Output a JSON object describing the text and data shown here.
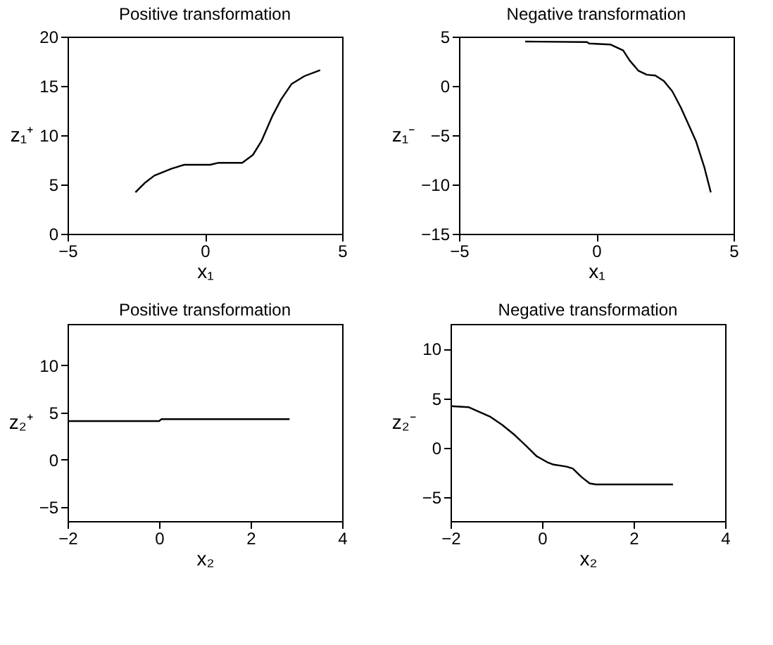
{
  "chart_data": [
    {
      "type": "line",
      "title": "Positive transformation",
      "xlabel": "x₁",
      "ylabel": "z₁⁺",
      "xlim": [
        -5,
        5
      ],
      "ylim": [
        0,
        20
      ],
      "xticks": [
        -5,
        0,
        5
      ],
      "yticks": [
        0,
        5,
        10,
        15,
        20
      ],
      "line_style": "solid",
      "series": [
        {
          "color": "#000000",
          "x": [
            -2.53,
            -2.17,
            -1.84,
            -1.22,
            -0.75,
            0.19,
            0.5,
            1.36,
            1.75,
            2.06,
            2.45,
            2.77,
            3.16,
            3.63,
            4.2
          ],
          "values": [
            4.2,
            5.2,
            5.9,
            6.6,
            7.0,
            7.0,
            7.2,
            7.2,
            8.0,
            9.4,
            11.9,
            13.6,
            15.2,
            16.0,
            16.6
          ]
        }
      ]
    },
    {
      "type": "line",
      "title": "Negative transformation",
      "xlabel": "x₁",
      "ylabel": "z₁⁻",
      "xlim": [
        -5,
        5
      ],
      "ylim": [
        -15,
        5
      ],
      "xticks": [
        -5,
        0,
        5
      ],
      "yticks": [
        -15,
        -10,
        -5,
        0,
        5
      ],
      "line_style": "solid",
      "series": [
        {
          "color": "#000000",
          "x": [
            -2.59,
            -0.34,
            -0.26,
            0.51,
            0.98,
            1.21,
            1.53,
            1.84,
            2.15,
            2.46,
            2.77,
            3.08,
            3.39,
            3.63,
            3.94,
            4.17
          ],
          "values": [
            4.5,
            4.45,
            4.3,
            4.2,
            3.6,
            2.6,
            1.55,
            1.13,
            1.05,
            0.5,
            -0.55,
            -2.2,
            -4.1,
            -5.6,
            -8.3,
            -10.8
          ]
        }
      ]
    },
    {
      "type": "line",
      "title": "Positive transformation",
      "xlabel": "x₂",
      "ylabel": "z₂⁺",
      "xlim": [
        -2,
        4
      ],
      "ylim": [
        -6.5,
        14.4
      ],
      "xticks": [
        -2,
        0,
        2,
        4
      ],
      "yticks": [
        -5,
        0,
        5,
        10
      ],
      "line_style": "solid",
      "series": [
        {
          "color": "#000000",
          "x": [
            -2,
            0,
            0.05,
            2.85
          ],
          "values": [
            4.1,
            4.1,
            4.3,
            4.3
          ]
        }
      ]
    },
    {
      "type": "line",
      "title": "Negative transformation",
      "xlabel": "x₂",
      "ylabel": "z₂⁻",
      "xlim": [
        -2,
        4
      ],
      "ylim": [
        -7.4,
        12.5
      ],
      "xticks": [
        -2,
        0,
        2,
        4
      ],
      "yticks": [
        -5,
        0,
        5,
        10
      ],
      "line_style": "solid",
      "series": [
        {
          "color": "#000000",
          "x": [
            -2,
            -1.61,
            -1.14,
            -0.87,
            -0.59,
            -0.35,
            -0.12,
            0.11,
            0.25,
            0.53,
            0.67,
            0.86,
            1.04,
            1.18,
            2.86
          ],
          "values": [
            4.2,
            4.1,
            3.15,
            2.3,
            1.25,
            0.2,
            -0.85,
            -1.45,
            -1.7,
            -1.9,
            -2.1,
            -2.95,
            -3.6,
            -3.7,
            -3.7
          ]
        }
      ]
    }
  ]
}
